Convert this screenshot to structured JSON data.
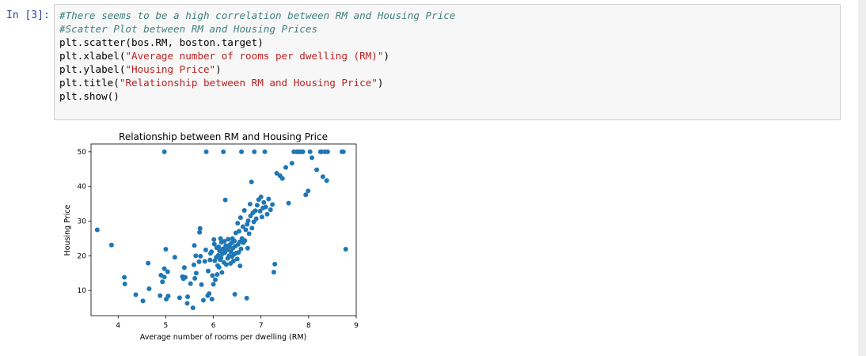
{
  "cell": {
    "prompt": "In [3]:",
    "code_lines": [
      "#There seems to be a high correlation between RM and Housing Price",
      "#Scatter Plot between RM and Housing Prices",
      "plt.scatter(bos.RM, boston.target)",
      "plt.xlabel(\"Average number of rooms per dwelling (RM)\")",
      "plt.ylabel(\"Housing Price\")",
      "plt.title(\"Relationship between RM and Housing Price\")",
      "plt.show()"
    ]
  },
  "chart_data": {
    "type": "scatter",
    "title": "Relationship between RM and Housing Price",
    "xlabel": "Average number of rooms per dwelling (RM)",
    "ylabel": "Housing Price",
    "xlim": [
      3.43,
      9.0
    ],
    "ylim": [
      2.75,
      52.25
    ],
    "xticks": [
      4,
      5,
      6,
      7,
      8,
      9
    ],
    "yticks": [
      10,
      20,
      30,
      40,
      50
    ],
    "grid": false,
    "marker_color": "#1f77b4",
    "series": [
      {
        "points": [
          [
            3.56,
            27.5
          ],
          [
            3.86,
            23.1
          ],
          [
            4.13,
            13.8
          ],
          [
            4.14,
            11.9
          ],
          [
            4.37,
            8.8
          ],
          [
            4.52,
            7.0
          ],
          [
            4.63,
            17.9
          ],
          [
            4.65,
            10.5
          ],
          [
            4.88,
            8.5
          ],
          [
            4.9,
            14.4
          ],
          [
            4.93,
            12.5
          ],
          [
            4.97,
            13.9
          ],
          [
            4.97,
            16.3
          ],
          [
            4.97,
            50.0
          ],
          [
            5.0,
            21.9
          ],
          [
            5.01,
            7.5
          ],
          [
            5.04,
            15.4
          ],
          [
            5.05,
            8.4
          ],
          [
            5.19,
            19.6
          ],
          [
            5.29,
            7.9
          ],
          [
            5.35,
            14.0
          ],
          [
            5.37,
            13.4
          ],
          [
            5.39,
            16.6
          ],
          [
            5.41,
            13.8
          ],
          [
            5.45,
            6.3
          ],
          [
            5.46,
            8.2
          ],
          [
            5.52,
            12.0
          ],
          [
            5.57,
            5.0
          ],
          [
            5.59,
            17.4
          ],
          [
            5.6,
            23.0
          ],
          [
            5.61,
            13.5
          ],
          [
            5.63,
            20.0
          ],
          [
            5.64,
            15.0
          ],
          [
            5.7,
            18.3
          ],
          [
            5.71,
            26.8
          ],
          [
            5.72,
            27.9
          ],
          [
            5.73,
            19.9
          ],
          [
            5.75,
            11.7
          ],
          [
            5.79,
            7.2
          ],
          [
            5.82,
            18.4
          ],
          [
            5.84,
            21.7
          ],
          [
            5.85,
            50.0
          ],
          [
            5.88,
            8.5
          ],
          [
            5.89,
            15.6
          ],
          [
            5.91,
            9.1
          ],
          [
            5.93,
            18.8
          ],
          [
            5.94,
            20.7
          ],
          [
            5.96,
            21.2
          ],
          [
            5.97,
            7.5
          ],
          [
            5.98,
            14.3
          ],
          [
            6.0,
            11.8
          ],
          [
            6.01,
            24.7
          ],
          [
            6.02,
            23.4
          ],
          [
            6.03,
            18.6
          ],
          [
            6.04,
            13.1
          ],
          [
            6.06,
            19.6
          ],
          [
            6.07,
            22.3
          ],
          [
            6.08,
            14.6
          ],
          [
            6.09,
            17.2
          ],
          [
            6.1,
            20.1
          ],
          [
            6.11,
            22.6
          ],
          [
            6.12,
            16.7
          ],
          [
            6.13,
            21.4
          ],
          [
            6.14,
            18.9
          ],
          [
            6.15,
            25.0
          ],
          [
            6.16,
            19.4
          ],
          [
            6.17,
            23.9
          ],
          [
            6.18,
            15.2
          ],
          [
            6.19,
            20.6
          ],
          [
            6.2,
            22.0
          ],
          [
            6.21,
            50.0
          ],
          [
            6.22,
            18.1
          ],
          [
            6.23,
            24.2
          ],
          [
            6.24,
            20.9
          ],
          [
            6.25,
            36.1
          ],
          [
            6.26,
            22.9
          ],
          [
            6.27,
            17.5
          ],
          [
            6.29,
            21.7
          ],
          [
            6.3,
            19.3
          ],
          [
            6.31,
            24.8
          ],
          [
            6.32,
            22.4
          ],
          [
            6.33,
            20.0
          ],
          [
            6.34,
            23.1
          ],
          [
            6.36,
            17.8
          ],
          [
            6.37,
            21.2
          ],
          [
            6.38,
            23.7
          ],
          [
            6.39,
            19.8
          ],
          [
            6.4,
            25.0
          ],
          [
            6.41,
            22.2
          ],
          [
            6.42,
            18.5
          ],
          [
            6.43,
            20.4
          ],
          [
            6.44,
            24.3
          ],
          [
            6.45,
            8.9
          ],
          [
            6.46,
            22.8
          ],
          [
            6.47,
            26.6
          ],
          [
            6.48,
            20.8
          ],
          [
            6.5,
            19.1
          ],
          [
            6.51,
            29.4
          ],
          [
            6.52,
            23.3
          ],
          [
            6.53,
            21.0
          ],
          [
            6.54,
            27.1
          ],
          [
            6.55,
            24.0
          ],
          [
            6.56,
            17.1
          ],
          [
            6.57,
            31.0
          ],
          [
            6.58,
            22.0
          ],
          [
            6.59,
            50.0
          ],
          [
            6.6,
            25.0
          ],
          [
            6.62,
            28.4
          ],
          [
            6.63,
            23.8
          ],
          [
            6.65,
            33.1
          ],
          [
            6.66,
            24.4
          ],
          [
            6.68,
            27.5
          ],
          [
            6.7,
            7.8
          ],
          [
            6.71,
            29.1
          ],
          [
            6.72,
            22.2
          ],
          [
            6.73,
            30.1
          ],
          [
            6.75,
            26.4
          ],
          [
            6.77,
            34.9
          ],
          [
            6.78,
            31.5
          ],
          [
            6.8,
            41.3
          ],
          [
            6.81,
            28.0
          ],
          [
            6.83,
            32.4
          ],
          [
            6.85,
            29.8
          ],
          [
            6.86,
            50.0
          ],
          [
            6.88,
            33.0
          ],
          [
            6.9,
            30.7
          ],
          [
            6.92,
            34.6
          ],
          [
            6.95,
            36.2
          ],
          [
            6.98,
            32.9
          ],
          [
            7.0,
            37.0
          ],
          [
            7.02,
            31.2
          ],
          [
            7.04,
            33.8
          ],
          [
            7.06,
            35.4
          ],
          [
            7.08,
            50.0
          ],
          [
            7.1,
            34.1
          ],
          [
            7.13,
            32.0
          ],
          [
            7.16,
            36.4
          ],
          [
            7.2,
            33.3
          ],
          [
            7.24,
            34.8
          ],
          [
            7.27,
            15.3
          ],
          [
            7.29,
            17.6
          ],
          [
            7.33,
            43.8
          ],
          [
            7.4,
            43.1
          ],
          [
            7.45,
            42.3
          ],
          [
            7.52,
            45.5
          ],
          [
            7.58,
            35.2
          ],
          [
            7.65,
            46.7
          ],
          [
            7.69,
            50.0
          ],
          [
            7.75,
            50.0
          ],
          [
            7.79,
            50.0
          ],
          [
            7.82,
            50.0
          ],
          [
            7.85,
            50.0
          ],
          [
            7.88,
            50.0
          ],
          [
            7.94,
            37.6
          ],
          [
            7.99,
            38.7
          ],
          [
            8.03,
            50.0
          ],
          [
            8.07,
            48.3
          ],
          [
            8.17,
            44.8
          ],
          [
            8.25,
            50.0
          ],
          [
            8.27,
            50.0
          ],
          [
            8.3,
            42.8
          ],
          [
            8.34,
            50.0
          ],
          [
            8.38,
            41.7
          ],
          [
            8.4,
            50.0
          ],
          [
            8.7,
            50.0
          ],
          [
            8.73,
            50.0
          ],
          [
            8.78,
            21.9
          ]
        ]
      }
    ]
  }
}
